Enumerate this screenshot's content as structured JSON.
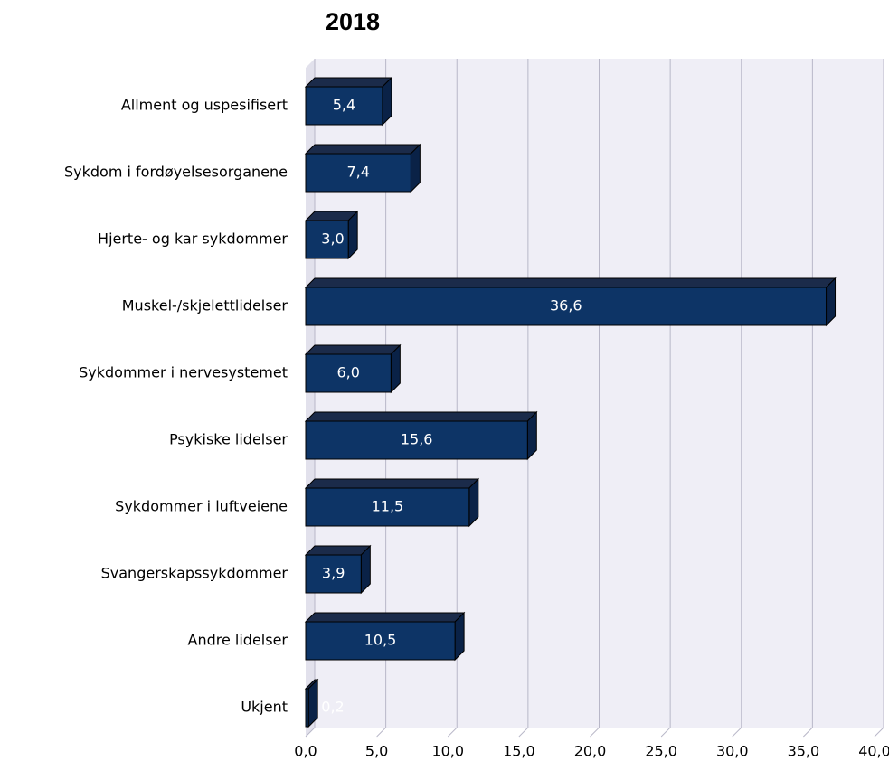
{
  "chart_data": {
    "type": "bar",
    "orientation": "horizontal",
    "title": "2018",
    "categories": [
      "Allment og uspesifisert",
      "Sykdom i fordøyelsesorganene",
      "Hjerte- og kar sykdommer",
      "Muskel-/skjelettlidelser",
      "Sykdommer i nervesystemet",
      "Psykiske lidelser",
      "Sykdommer i luftveiene",
      "Svangerskapssykdommer",
      "Andre lidelser",
      "Ukjent"
    ],
    "values": [
      5.4,
      7.4,
      3.0,
      36.6,
      6.0,
      15.6,
      11.5,
      3.9,
      10.5,
      0.2
    ],
    "value_labels": [
      "5,4",
      "7,4",
      "3,0",
      "36,6",
      "6,0",
      "15,6",
      "11,5",
      "3,9",
      "10,5",
      "0,2"
    ],
    "color": "#0d3466",
    "xlim": [
      0,
      40
    ],
    "xticks": [
      {
        "value": 0,
        "label": "0,0"
      },
      {
        "value": 5,
        "label": "5,0"
      },
      {
        "value": 10,
        "label": "10,0"
      },
      {
        "value": 15,
        "label": "15,0"
      },
      {
        "value": 20,
        "label": "20,0"
      },
      {
        "value": 25,
        "label": "25,0"
      },
      {
        "value": 30,
        "label": "30,0"
      },
      {
        "value": 35,
        "label": "35,0"
      },
      {
        "value": 40,
        "label": "40,0"
      }
    ],
    "grid": true
  }
}
